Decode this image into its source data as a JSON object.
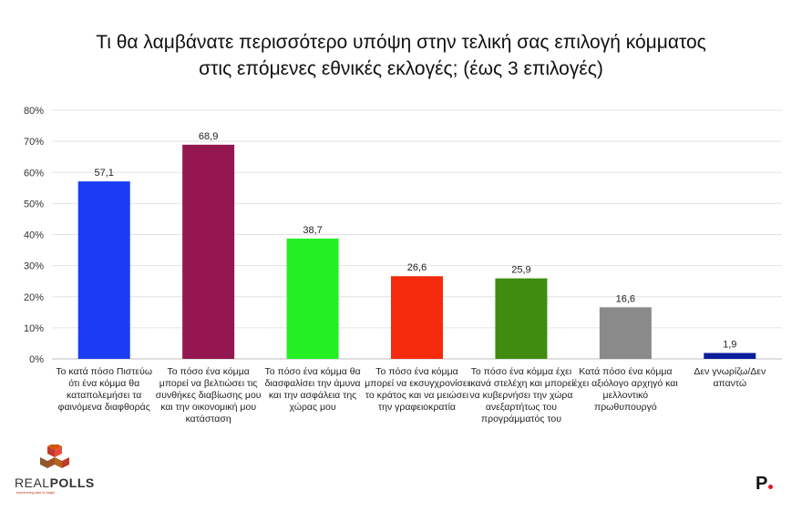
{
  "title_lines": [
    "Τι θα λαμβάνατε περισσότερο υπόψη στην τελική σας επιλογή κόμματος",
    "στις επόμενες εθνικές εκλογές; (έως 3 επιλογές)"
  ],
  "chart_data": {
    "type": "bar",
    "categories": [
      "Το κατά πόσο Πιστεύω ότι ένα κόμμα θα καταπολεμήσει τα φαινόμενα διαφθοράς",
      "Το πόσο ένα κόμμα μπορεί να βελτιώσει τις συνθήκες διαβίωσης μου και την οικονομική μου κατάσταση",
      "Το πόσο ένα κόμμα θα διασφαλίσει την άμυνα και την ασφάλεια της χώρας μου",
      "Το πόσο ένα κόμμα μπορεί να εκσυγχρονίσει το κράτος και να μειώσει την γραφειοκρατία",
      "Το πόσο ένα κόμμα έχει ικανά στελέχη και μπορεί να κυβερνήσει την χώρα ανεξαρτήτως του προγράμματός του",
      "Κατά πόσο ένα κόμμα έχει αξιόλογο αρχηγό και μελλοντικό πρωθυπουργό",
      "Δεν γνωρίζω/Δεν απαντώ"
    ],
    "values": [
      57.1,
      68.9,
      38.7,
      26.6,
      25.9,
      16.6,
      1.9
    ],
    "value_labels": [
      "57,1",
      "68,9",
      "38,7",
      "26,6",
      "25,9",
      "16,6",
      "1,9"
    ],
    "colors": [
      "#1a3cf5",
      "#94174f",
      "#22f022",
      "#f52a0c",
      "#3f8c0f",
      "#8a8a8a",
      "#0c1e9c"
    ],
    "y_ticks": [
      "0%",
      "10%",
      "20%",
      "30%",
      "40%",
      "50%",
      "60%",
      "70%",
      "80%"
    ],
    "ylim": [
      0,
      80
    ],
    "grid": true,
    "legend": "none"
  },
  "logos": {
    "left_text_light": "REAL",
    "left_text_bold": "POLLS",
    "left_tagline": "transforming data to insight",
    "right_text": "P"
  }
}
